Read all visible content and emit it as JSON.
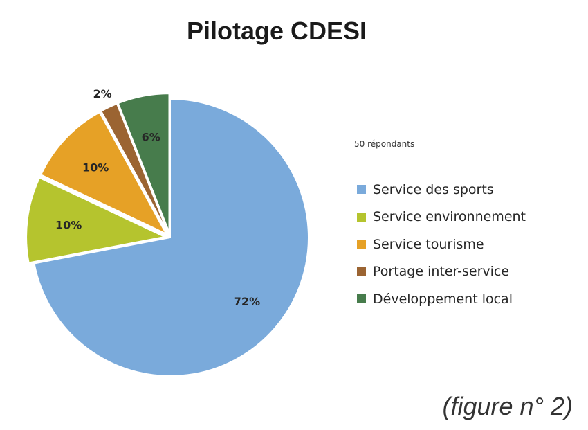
{
  "title": "Pilotage CDESI",
  "respondents_note": "50 répondants",
  "caption": "(figure n° 2)",
  "chart_data": {
    "type": "pie",
    "title": "Pilotage CDESI",
    "categories": [
      "Service des sports",
      "Service environnement",
      "Service tourisme",
      "Portage inter-service",
      "Développement local"
    ],
    "values": [
      72,
      10,
      10,
      2,
      6
    ],
    "labels": [
      "72%",
      "10%",
      "10%",
      "2%",
      "6%"
    ],
    "colors": [
      "#7aaadb",
      "#b5c42e",
      "#e6a126",
      "#9b6432",
      "#477c4c"
    ],
    "exploded": [
      false,
      true,
      true,
      true,
      true
    ],
    "legend": "right"
  }
}
